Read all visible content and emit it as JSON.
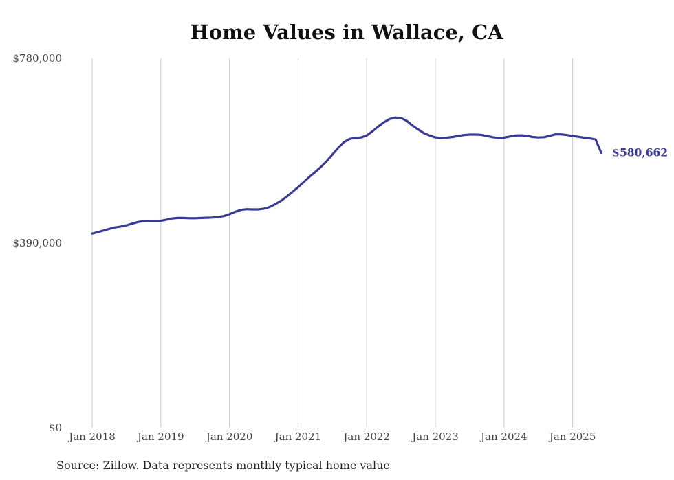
{
  "chart_data": {
    "type": "line",
    "title": "Home Values in Wallace, CA",
    "source": "Source: Zillow. Data represents monthly typical home value",
    "xlabel": "",
    "ylabel": "",
    "ylim": [
      0,
      780000
    ],
    "y_ticks": [
      0,
      390000,
      780000
    ],
    "y_tick_labels": [
      "$0",
      "$390,000",
      "$780,000"
    ],
    "x_tick_labels": [
      "Jan 2018",
      "Jan 2019",
      "Jan 2020",
      "Jan 2021",
      "Jan 2022",
      "Jan 2023",
      "Jan 2024",
      "Jan 2025"
    ],
    "grid": "vertical",
    "line_color": "#3a3a96",
    "last_value_label": "$580,662",
    "series": [
      {
        "x": [
          "2018-01",
          "2018-02",
          "2018-03",
          "2018-04",
          "2018-05",
          "2018-06",
          "2018-07",
          "2018-08",
          "2018-09",
          "2018-10",
          "2018-11",
          "2018-12",
          "2019-01",
          "2019-02",
          "2019-03",
          "2019-04",
          "2019-05",
          "2019-06",
          "2019-07",
          "2019-08",
          "2019-09",
          "2019-10",
          "2019-11",
          "2019-12",
          "2020-01",
          "2020-02",
          "2020-03",
          "2020-04",
          "2020-05",
          "2020-06",
          "2020-07",
          "2020-08",
          "2020-09",
          "2020-10",
          "2020-11",
          "2020-12",
          "2021-01",
          "2021-02",
          "2021-03",
          "2021-04",
          "2021-05",
          "2021-06",
          "2021-07",
          "2021-08",
          "2021-09",
          "2021-10",
          "2021-11",
          "2021-12",
          "2022-01",
          "2022-02",
          "2022-03",
          "2022-04",
          "2022-05",
          "2022-06",
          "2022-07",
          "2022-08",
          "2022-09",
          "2022-10",
          "2022-11",
          "2022-12",
          "2023-01",
          "2023-02",
          "2023-03",
          "2023-04",
          "2023-05",
          "2023-06",
          "2023-07",
          "2023-08",
          "2023-09",
          "2023-10",
          "2023-11",
          "2023-12",
          "2024-01",
          "2024-02",
          "2024-03",
          "2024-04",
          "2024-05",
          "2024-06",
          "2024-07",
          "2024-08",
          "2024-09",
          "2024-10",
          "2024-11",
          "2024-12",
          "2025-01",
          "2025-02",
          "2025-03",
          "2025-04",
          "2025-05",
          "2025-06"
        ],
        "values": [
          410000,
          413000,
          416500,
          420000,
          423000,
          425000,
          427500,
          431000,
          434500,
          436500,
          437000,
          437000,
          437000,
          439500,
          442000,
          443000,
          443000,
          442500,
          442500,
          443000,
          443500,
          444000,
          445000,
          447000,
          451000,
          456000,
          460000,
          461500,
          461000,
          461000,
          462500,
          466000,
          472000,
          479000,
          488000,
          498000,
          508000,
          519000,
          530000,
          540000,
          551000,
          563000,
          577000,
          591000,
          603000,
          610000,
          612000,
          613000,
          617000,
          626000,
          636000,
          645000,
          652000,
          655000,
          654000,
          648000,
          638000,
          630000,
          622000,
          617000,
          613000,
          612000,
          612500,
          614000,
          616000,
          618000,
          619000,
          619000,
          618500,
          616000,
          613500,
          612000,
          612500,
          615000,
          617000,
          617500,
          616500,
          614000,
          613000,
          613500,
          616500,
          619500,
          619500,
          618000,
          616000,
          614500,
          612500,
          611000,
          609000,
          580662
        ]
      }
    ]
  }
}
